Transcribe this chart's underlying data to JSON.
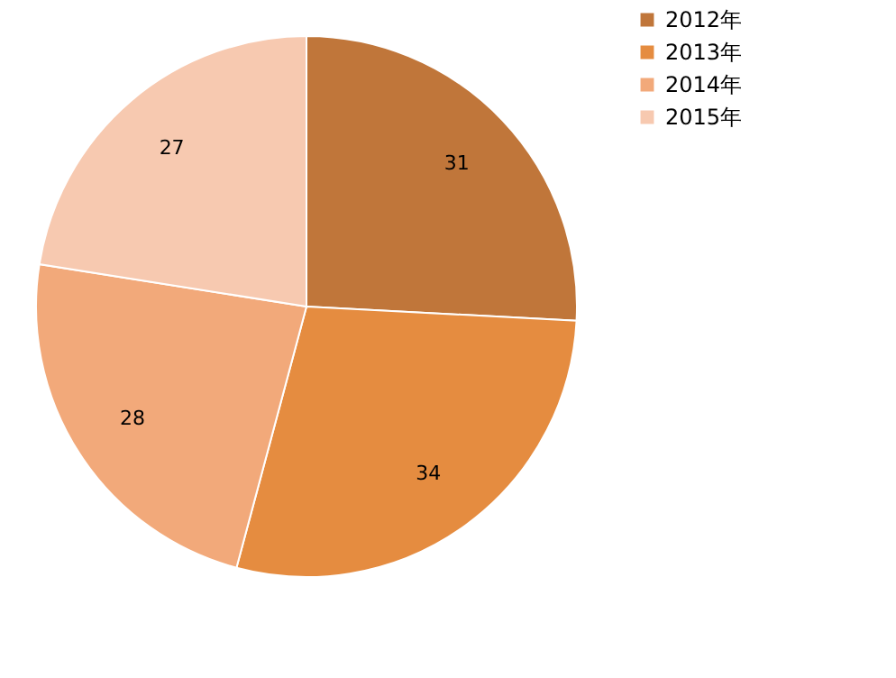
{
  "chart_data": {
    "type": "pie",
    "categories": [
      "2012年",
      "2013年",
      "2014年",
      "2015年"
    ],
    "values": [
      31,
      34,
      28,
      27
    ],
    "colors": [
      "#c0763a",
      "#e58c40",
      "#f2a97a",
      "#f7c9b0"
    ],
    "data_labels": true,
    "legend": "right"
  }
}
